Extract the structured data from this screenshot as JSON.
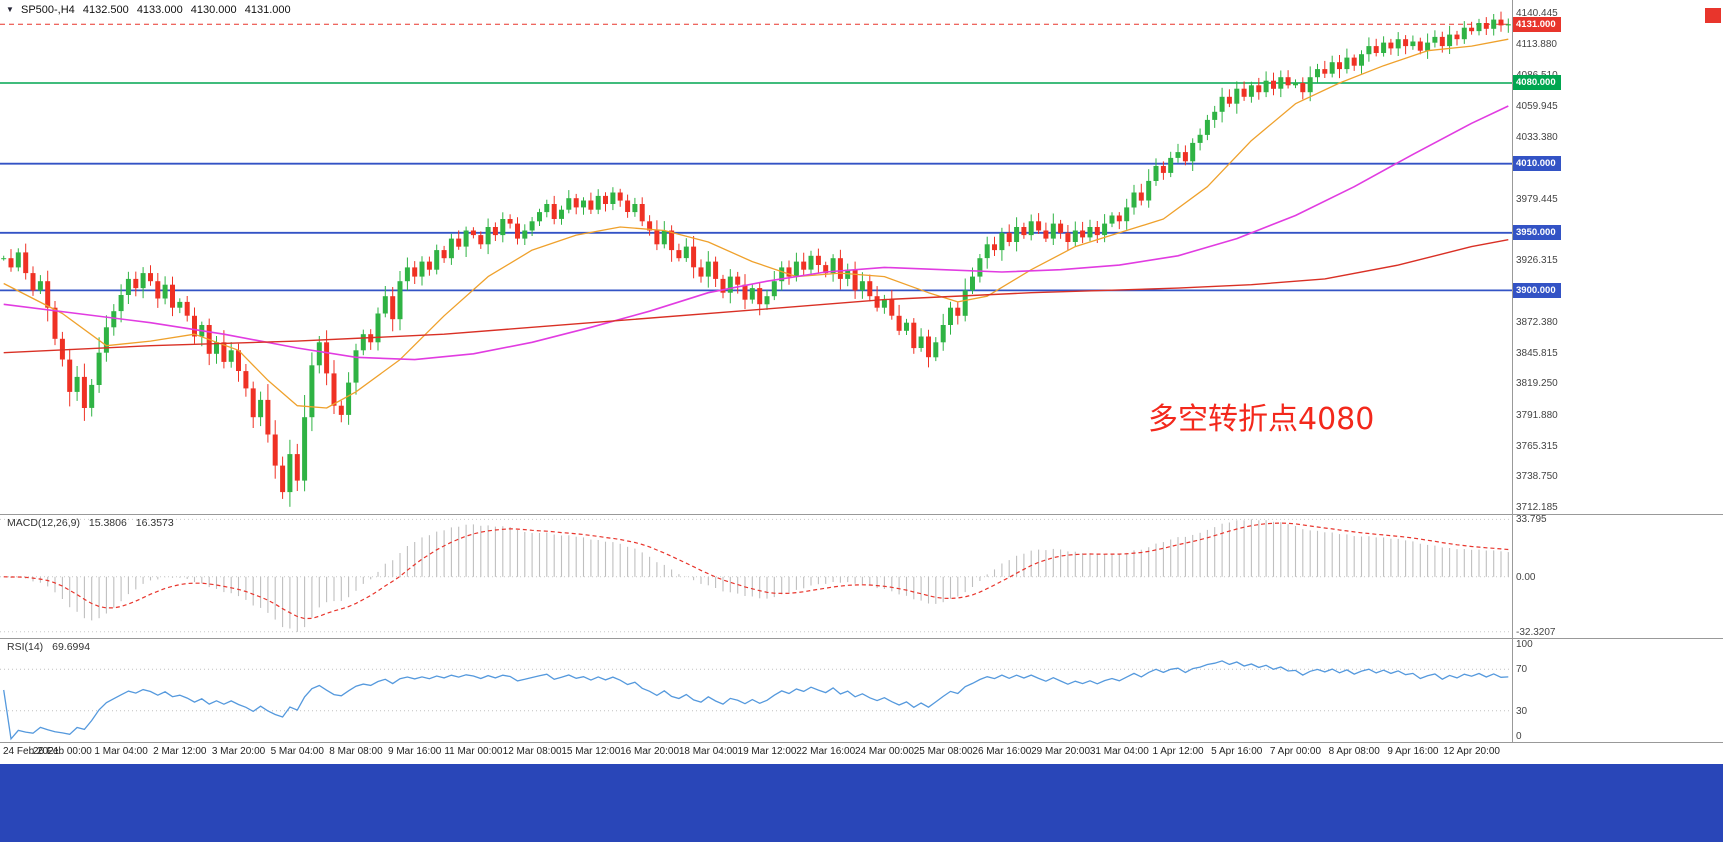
{
  "header": {
    "collapse_icon": "▼",
    "symbol_period": "SP500-,H4",
    "open": "4132.500",
    "high": "4133.000",
    "low": "4130.000",
    "close": "4131.000"
  },
  "annotation": {
    "text": "多空转折点4080",
    "color": "#f3281c"
  },
  "colors": {
    "bg": "#ffffff",
    "up": "#2fb344",
    "down": "#ef3124",
    "macd_hist": "#bfbfbf",
    "macd_signal": "#e8352c",
    "rsi": "#5599dd",
    "text": "#333333",
    "border": "#999999",
    "bottom_bar": "#2946b8",
    "corner_marker": "#e8352c"
  },
  "chart_data": {
    "type": "candlestick",
    "symbol": "SP500-",
    "timeframe": "H4",
    "ylim": [
      3706,
      4152
    ],
    "bars_per_label": 8,
    "x_labels": [
      "24 Feb 2021",
      "26 Feb 00:00",
      "1 Mar 04:00",
      "2 Mar 12:00",
      "3 Mar 20:00",
      "5 Mar 04:00",
      "8 Mar 08:00",
      "9 Mar 16:00",
      "11 Mar 00:00",
      "12 Mar 08:00",
      "15 Mar 12:00",
      "16 Mar 20:00",
      "18 Mar 04:00",
      "19 Mar 12:00",
      "22 Mar 16:00",
      "24 Mar 00:00",
      "25 Mar 08:00",
      "26 Mar 16:00",
      "29 Mar 20:00",
      "31 Mar 04:00",
      "1 Apr 12:00",
      "5 Apr 16:00",
      "7 Apr 00:00",
      "8 Apr 08:00",
      "9 Apr 16:00",
      "12 Apr 20:00"
    ],
    "closes": [
      3928,
      3920,
      3933,
      3915,
      3900,
      3908,
      3885,
      3858,
      3840,
      3812,
      3825,
      3798,
      3818,
      3846,
      3868,
      3882,
      3896,
      3910,
      3902,
      3915,
      3908,
      3893,
      3905,
      3885,
      3890,
      3878,
      3860,
      3870,
      3845,
      3855,
      3838,
      3848,
      3830,
      3815,
      3790,
      3805,
      3775,
      3748,
      3725,
      3758,
      3735,
      3790,
      3835,
      3855,
      3828,
      3800,
      3792,
      3820,
      3848,
      3862,
      3855,
      3880,
      3895,
      3875,
      3908,
      3920,
      3912,
      3925,
      3918,
      3935,
      3928,
      3945,
      3938,
      3952,
      3948,
      3940,
      3955,
      3948,
      3962,
      3958,
      3945,
      3952,
      3960,
      3968,
      3975,
      3962,
      3970,
      3980,
      3972,
      3978,
      3970,
      3982,
      3975,
      3985,
      3978,
      3968,
      3975,
      3960,
      3952,
      3940,
      3952,
      3935,
      3928,
      3938,
      3920,
      3912,
      3925,
      3910,
      3898,
      3912,
      3905,
      3892,
      3902,
      3888,
      3895,
      3908,
      3920,
      3912,
      3925,
      3918,
      3930,
      3922,
      3915,
      3928,
      3910,
      3918,
      3900,
      3908,
      3895,
      3885,
      3892,
      3878,
      3865,
      3872,
      3850,
      3860,
      3842,
      3855,
      3870,
      3885,
      3878,
      3900,
      3912,
      3928,
      3940,
      3935,
      3950,
      3942,
      3955,
      3948,
      3960,
      3952,
      3945,
      3958,
      3950,
      3942,
      3952,
      3946,
      3955,
      3948,
      3958,
      3965,
      3960,
      3972,
      3985,
      3978,
      3995,
      4008,
      4002,
      4015,
      4020,
      4012,
      4028,
      4035,
      4048,
      4055,
      4068,
      4062,
      4075,
      4068,
      4078,
      4072,
      4082,
      4075,
      4085,
      4078,
      4080,
      4072,
      4085,
      4092,
      4088,
      4098,
      4092,
      4102,
      4095,
      4105,
      4112,
      4106,
      4115,
      4110,
      4118,
      4112,
      4116,
      4108,
      4115,
      4120,
      4112,
      4122,
      4118,
      4128,
      4125,
      4132,
      4127,
      4135,
      4130,
      4131
    ],
    "price_ticks": [
      "4140.445",
      "4113.880",
      "4086.510",
      "4059.945",
      "4033.380",
      "3979.445",
      "3926.315",
      "3872.380",
      "3845.815",
      "3819.250",
      "3791.880",
      "3765.315",
      "3738.750",
      "3712.185"
    ],
    "price_badges": [
      {
        "label": "4131.000",
        "value": 4131.0,
        "bg": "#e8352c"
      },
      {
        "label": "4080.000",
        "value": 4080.0,
        "bg": "#00a650"
      },
      {
        "label": "4010.000",
        "value": 4010.0,
        "bg": "#3353c5"
      },
      {
        "label": "3950.000",
        "value": 3950.0,
        "bg": "#3353c5"
      },
      {
        "label": "3900.000",
        "value": 3900.0,
        "bg": "#3353c5"
      }
    ],
    "hlines": [
      {
        "value": 4131.0,
        "color": "#e8352c",
        "style": "dashed",
        "width": 1
      },
      {
        "value": 4080.0,
        "color": "#00a650",
        "style": "solid",
        "width": 1.4
      },
      {
        "value": 4010.0,
        "color": "#3353c5",
        "style": "solid",
        "width": 1.8
      },
      {
        "value": 3950.0,
        "color": "#3353c5",
        "style": "solid",
        "width": 1.8
      },
      {
        "value": 3900.0,
        "color": "#3353c5",
        "style": "solid",
        "width": 1.8
      }
    ],
    "ma_lines": [
      {
        "name": "ma-fast-orange",
        "color": "#efa12c",
        "width": 1.3,
        "points": [
          [
            0,
            3906
          ],
          [
            8,
            3880
          ],
          [
            14,
            3852
          ],
          [
            20,
            3856
          ],
          [
            26,
            3862
          ],
          [
            32,
            3848
          ],
          [
            36,
            3822
          ],
          [
            40,
            3800
          ],
          [
            44,
            3798
          ],
          [
            48,
            3812
          ],
          [
            54,
            3840
          ],
          [
            60,
            3878
          ],
          [
            66,
            3912
          ],
          [
            72,
            3935
          ],
          [
            78,
            3948
          ],
          [
            84,
            3955
          ],
          [
            90,
            3952
          ],
          [
            96,
            3942
          ],
          [
            102,
            3925
          ],
          [
            108,
            3912
          ],
          [
            114,
            3915
          ],
          [
            120,
            3912
          ],
          [
            126,
            3898
          ],
          [
            130,
            3890
          ],
          [
            134,
            3895
          ],
          [
            140,
            3918
          ],
          [
            146,
            3938
          ],
          [
            152,
            3950
          ],
          [
            158,
            3962
          ],
          [
            164,
            3990
          ],
          [
            170,
            4030
          ],
          [
            176,
            4062
          ],
          [
            182,
            4080
          ],
          [
            188,
            4095
          ],
          [
            194,
            4108
          ],
          [
            200,
            4112
          ],
          [
            205,
            4118
          ]
        ]
      },
      {
        "name": "ma-medium-magenta",
        "color": "#e13ce1",
        "width": 1.6,
        "points": [
          [
            0,
            3888
          ],
          [
            10,
            3880
          ],
          [
            20,
            3872
          ],
          [
            30,
            3862
          ],
          [
            40,
            3850
          ],
          [
            48,
            3842
          ],
          [
            56,
            3840
          ],
          [
            64,
            3845
          ],
          [
            72,
            3855
          ],
          [
            80,
            3868
          ],
          [
            88,
            3882
          ],
          [
            96,
            3898
          ],
          [
            104,
            3908
          ],
          [
            112,
            3916
          ],
          [
            120,
            3920
          ],
          [
            128,
            3918
          ],
          [
            136,
            3916
          ],
          [
            144,
            3918
          ],
          [
            152,
            3922
          ],
          [
            160,
            3930
          ],
          [
            168,
            3945
          ],
          [
            176,
            3965
          ],
          [
            184,
            3990
          ],
          [
            192,
            4018
          ],
          [
            200,
            4045
          ],
          [
            205,
            4060
          ]
        ]
      },
      {
        "name": "ma-slow-red",
        "color": "#d93025",
        "width": 1.4,
        "points": [
          [
            0,
            3846
          ],
          [
            20,
            3852
          ],
          [
            40,
            3856
          ],
          [
            60,
            3862
          ],
          [
            80,
            3872
          ],
          [
            100,
            3882
          ],
          [
            120,
            3892
          ],
          [
            140,
            3898
          ],
          [
            160,
            3902
          ],
          [
            170,
            3905
          ],
          [
            180,
            3910
          ],
          [
            190,
            3922
          ],
          [
            200,
            3938
          ],
          [
            205,
            3944
          ]
        ]
      }
    ],
    "macd": {
      "name": "MACD(12,26,9)",
      "value_main": "15.3806",
      "value_signal": "16.3573",
      "params": [
        12,
        26,
        9
      ],
      "axis_labels": [
        "33.795",
        "0.00",
        "-32.3207"
      ],
      "axis_values": [
        33.795,
        0,
        -32.3207
      ],
      "derived_from": "closes"
    },
    "rsi": {
      "name": "RSI(14)",
      "value": "69.6994",
      "period": 14,
      "levels": [
        100,
        70,
        30,
        0
      ],
      "derived_from": "closes"
    }
  }
}
